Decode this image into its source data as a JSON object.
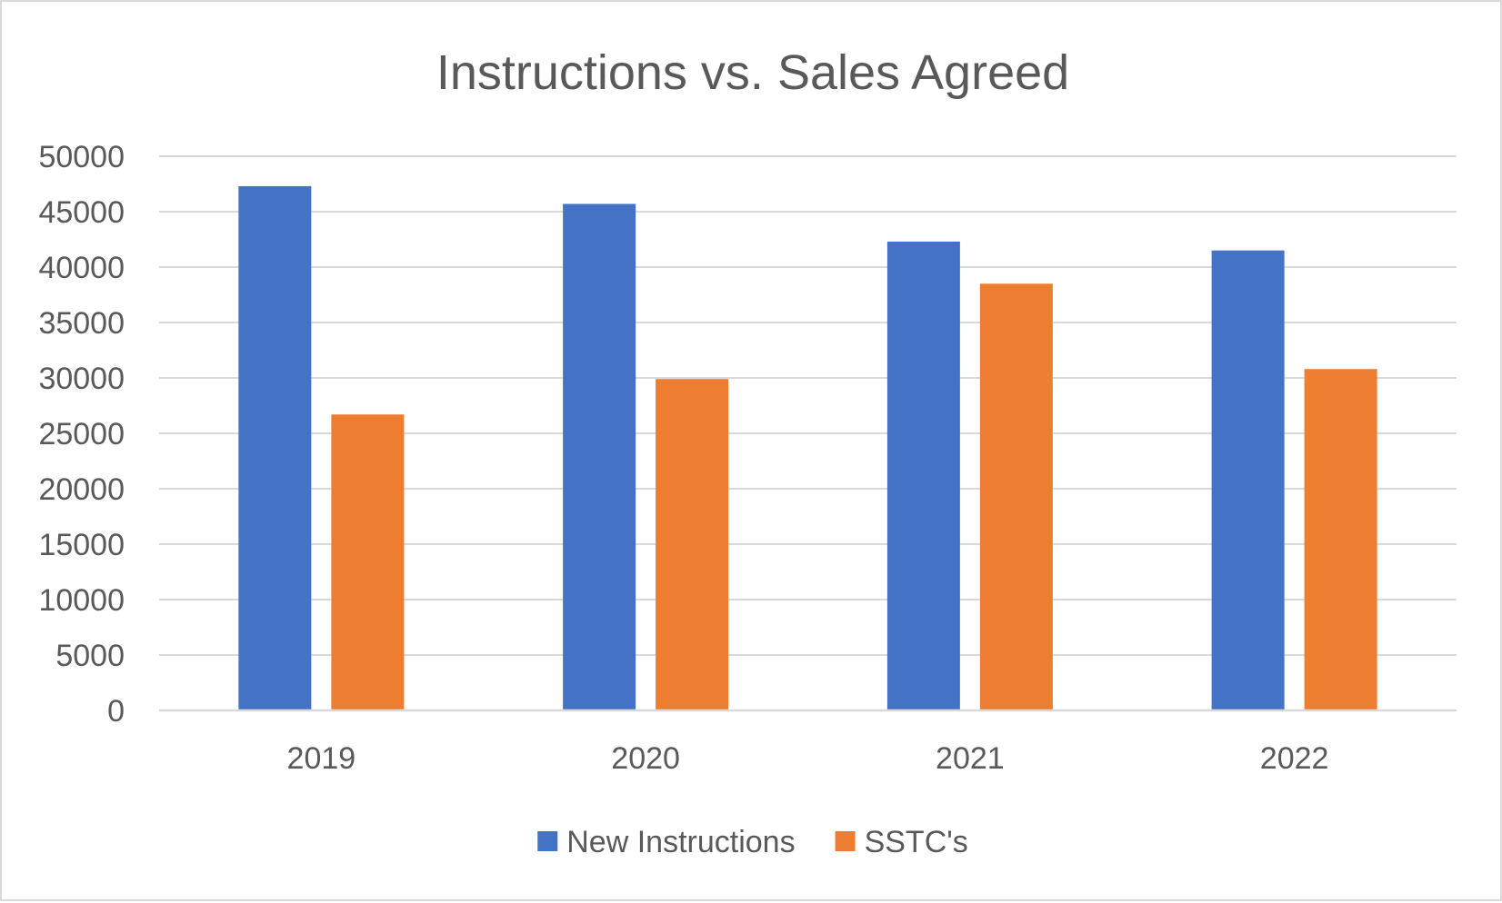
{
  "chart_data": {
    "type": "bar",
    "title": "Instructions vs. Sales Agreed",
    "xlabel": "",
    "ylabel": "",
    "categories": [
      "2019",
      "2020",
      "2021",
      "2022"
    ],
    "series": [
      {
        "name": "New Instructions",
        "color": "#4472C4",
        "values": [
          47300,
          45700,
          42300,
          41500
        ]
      },
      {
        "name": "SSTC's",
        "color": "#ED7D31",
        "values": [
          26700,
          29900,
          38500,
          30800
        ]
      }
    ],
    "ylim": [
      0,
      50000
    ],
    "yticks": [
      "0",
      "5000",
      "10000",
      "15000",
      "20000",
      "25000",
      "30000",
      "35000",
      "40000",
      "45000",
      "50000"
    ],
    "grid": true,
    "legend_position": "bottom"
  }
}
